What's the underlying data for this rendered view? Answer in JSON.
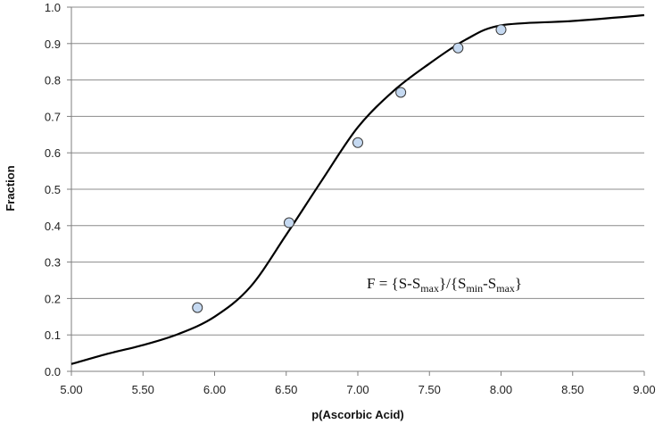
{
  "chart_data": {
    "type": "scatter",
    "xlabel": "p(Ascorbic Acid)",
    "ylabel": "Fraction",
    "xlim": [
      5.0,
      9.0
    ],
    "ylim": [
      0.0,
      1.0
    ],
    "x_ticks": [
      "5.00",
      "5.50",
      "6.00",
      "6.50",
      "7.00",
      "7.50",
      "8.00",
      "8.50",
      "9.00"
    ],
    "y_ticks": [
      "0.0",
      "0.1",
      "0.2",
      "0.3",
      "0.4",
      "0.5",
      "0.6",
      "0.7",
      "0.8",
      "0.9",
      "1.0"
    ],
    "grid": "horizontal",
    "series": [
      {
        "kind": "points",
        "marker_color": "#c5d9f1",
        "points": [
          {
            "x": 5.88,
            "y": 0.175
          },
          {
            "x": 6.52,
            "y": 0.408
          },
          {
            "x": 7.0,
            "y": 0.628
          },
          {
            "x": 7.3,
            "y": 0.766
          },
          {
            "x": 7.7,
            "y": 0.888
          },
          {
            "x": 8.0,
            "y": 0.938
          }
        ]
      },
      {
        "kind": "curve",
        "line_color": "#000000",
        "points": [
          {
            "x": 5.0,
            "y": 0.02
          },
          {
            "x": 5.25,
            "y": 0.048
          },
          {
            "x": 5.5,
            "y": 0.072
          },
          {
            "x": 5.75,
            "y": 0.103
          },
          {
            "x": 6.0,
            "y": 0.15
          },
          {
            "x": 6.25,
            "y": 0.232
          },
          {
            "x": 6.5,
            "y": 0.375
          },
          {
            "x": 6.75,
            "y": 0.525
          },
          {
            "x": 7.0,
            "y": 0.67
          },
          {
            "x": 7.25,
            "y": 0.77
          },
          {
            "x": 7.5,
            "y": 0.845
          },
          {
            "x": 7.75,
            "y": 0.91
          },
          {
            "x": 8.0,
            "y": 0.95
          },
          {
            "x": 8.5,
            "y": 0.962
          },
          {
            "x": 9.0,
            "y": 0.978
          }
        ]
      }
    ],
    "annotation": {
      "parts": [
        {
          "text": "F = {S-S",
          "sub": false
        },
        {
          "text": "max",
          "sub": true
        },
        {
          "text": "}/{S",
          "sub": false
        },
        {
          "text": "min",
          "sub": true
        },
        {
          "text": "-S",
          "sub": false
        },
        {
          "text": "max",
          "sub": true
        },
        {
          "text": "}",
          "sub": false
        }
      ]
    }
  }
}
